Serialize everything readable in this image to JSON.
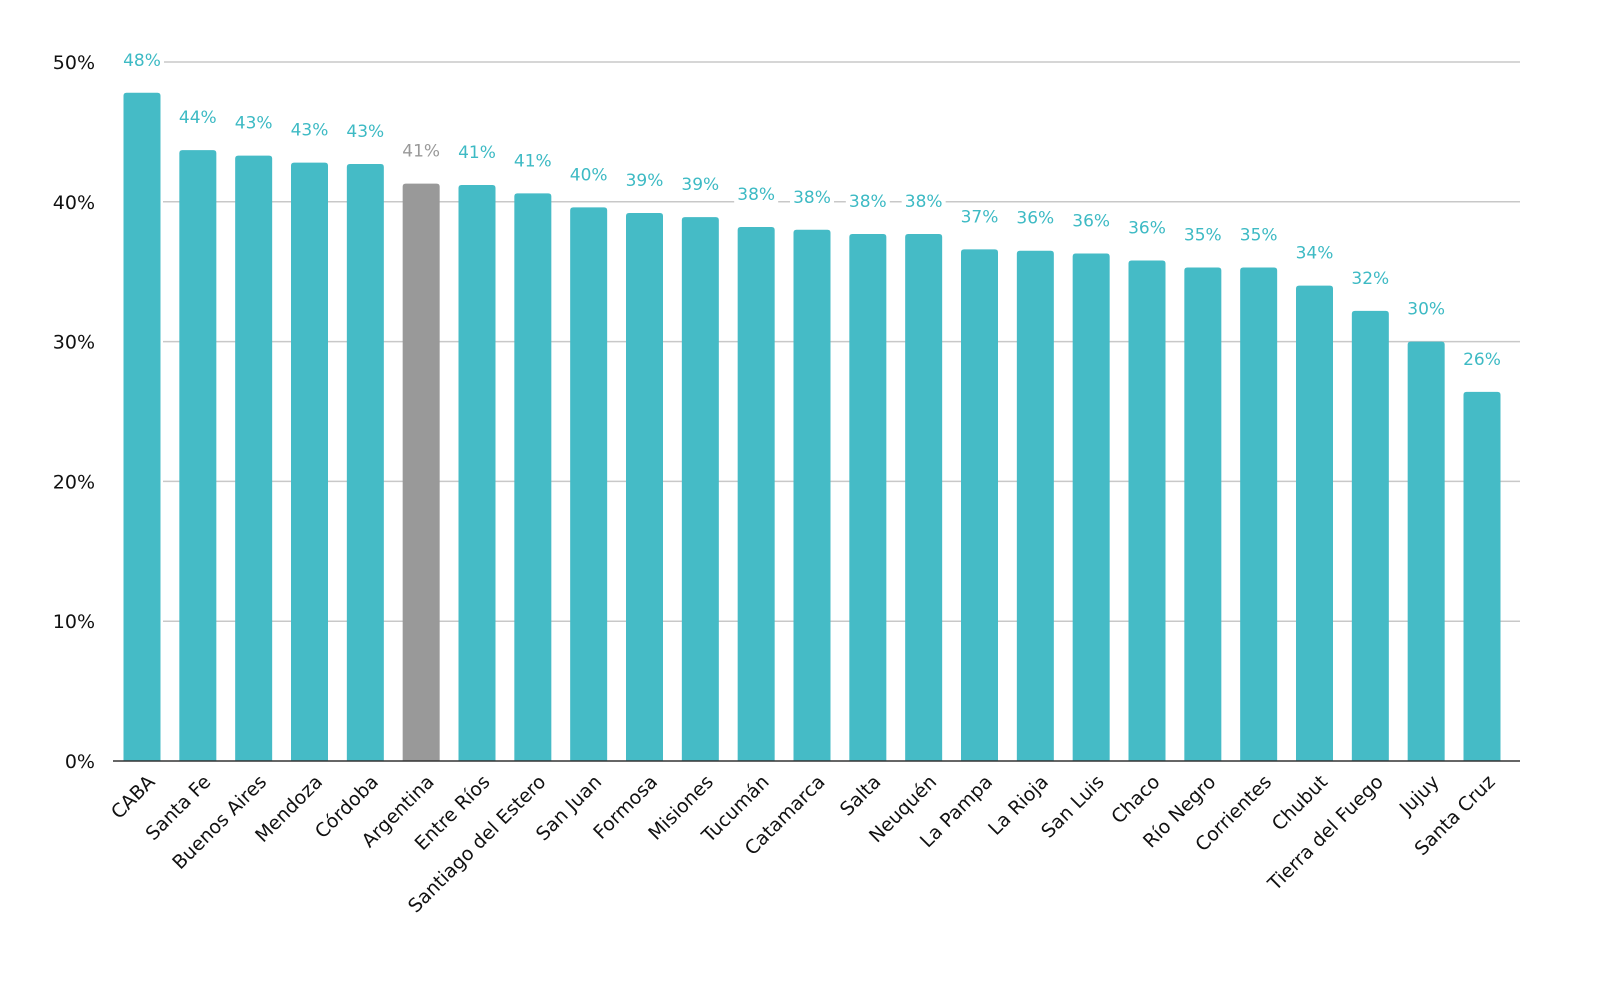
{
  "chart_data": {
    "type": "bar",
    "title": "",
    "xlabel": "",
    "ylabel": "",
    "ylim": [
      0,
      50
    ],
    "yticks": [
      "0%",
      "10%",
      "20%",
      "30%",
      "40%",
      "50%"
    ],
    "grid": true,
    "legend": "none",
    "colors": {
      "default": "#45BBC6",
      "highlight": "#999999",
      "label_default": "#3DBAC4",
      "label_highlight": "#999999",
      "gridline": "#C8C8C8",
      "axis": "#333333"
    },
    "categories": [
      "CABA",
      "Santa Fe",
      "Buenos Aires",
      "Mendoza",
      "Córdoba",
      "Argentina",
      "Entre Ríos",
      "Santiago del Estero",
      "San Juan",
      "Formosa",
      "Misiones",
      "Tucumán",
      "Catamarca",
      "Salta",
      "Neuquén",
      "La Pampa",
      "La Rioja",
      "San Luis",
      "Chaco",
      "Río Negro",
      "Corrientes",
      "Chubut",
      "Tierra del Fuego",
      "Jujuy",
      "Santa Cruz"
    ],
    "values": [
      47.8,
      43.7,
      43.3,
      42.8,
      42.7,
      41.3,
      41.2,
      40.6,
      39.6,
      39.2,
      38.9,
      38.2,
      38.0,
      37.7,
      37.7,
      36.6,
      36.5,
      36.3,
      35.8,
      35.3,
      35.3,
      34.0,
      32.2,
      30.0,
      26.4
    ],
    "data_labels": [
      "48%",
      "44%",
      "43%",
      "43%",
      "43%",
      "41%",
      "41%",
      "41%",
      "40%",
      "39%",
      "39%",
      "38%",
      "38%",
      "38%",
      "38%",
      "37%",
      "36%",
      "36%",
      "36%",
      "35%",
      "35%",
      "34%",
      "32%",
      "30%",
      "26%"
    ],
    "highlight": [
      "Argentina"
    ]
  }
}
